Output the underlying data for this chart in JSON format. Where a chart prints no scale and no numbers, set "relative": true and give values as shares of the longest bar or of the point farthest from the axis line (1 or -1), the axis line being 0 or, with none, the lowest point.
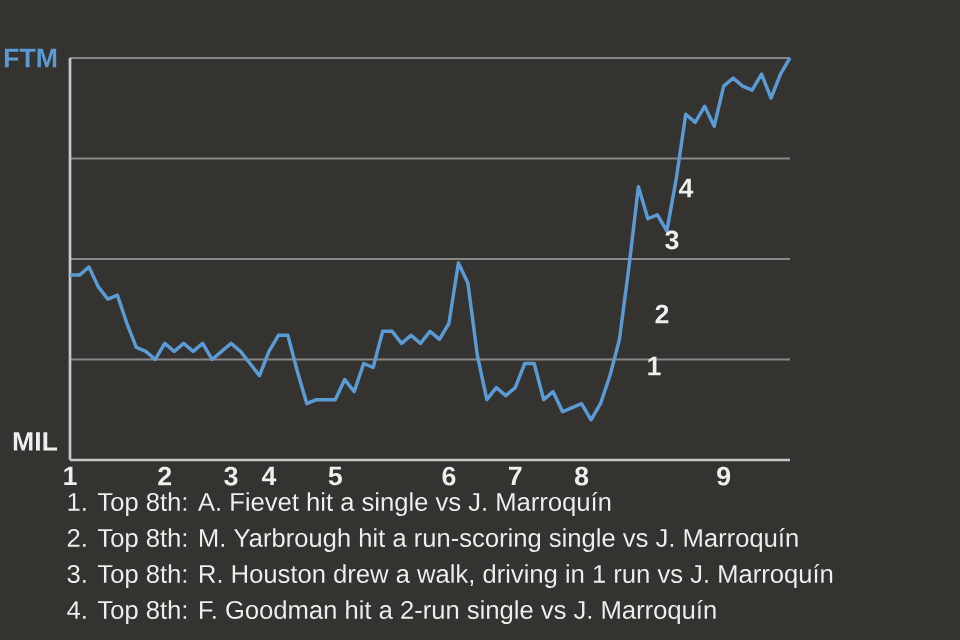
{
  "chart_data": {
    "type": "line",
    "relative": true,
    "grid": "y",
    "categories": [
      "1",
      null,
      null,
      null,
      null,
      null,
      null,
      null,
      null,
      null,
      "2",
      null,
      null,
      null,
      null,
      null,
      null,
      "3",
      null,
      null,
      null,
      "4",
      null,
      null,
      null,
      null,
      null,
      null,
      "5",
      null,
      null,
      null,
      null,
      null,
      null,
      null,
      null,
      null,
      null,
      null,
      "6",
      null,
      null,
      null,
      null,
      null,
      null,
      "7",
      null,
      null,
      null,
      null,
      null,
      null,
      "8",
      null,
      null,
      null,
      null,
      null,
      null,
      null,
      null,
      null,
      null,
      null,
      null,
      null,
      null,
      "9",
      null,
      null,
      null,
      null,
      null,
      null,
      null
    ],
    "series": [
      {
        "color": "#5b9bd5",
        "values": [
          0.46,
          0.46,
          0.48,
          0.43,
          0.4,
          0.41,
          0.34,
          0.28,
          0.27,
          0.25,
          0.29,
          0.27,
          0.29,
          0.27,
          0.29,
          0.25,
          0.27,
          0.29,
          0.27,
          0.24,
          0.21,
          0.27,
          0.31,
          0.31,
          0.22,
          0.14,
          0.15,
          0.15,
          0.15,
          0.2,
          0.17,
          0.24,
          0.23,
          0.32,
          0.32,
          0.29,
          0.31,
          0.29,
          0.32,
          0.3,
          0.34,
          0.49,
          0.44,
          0.26,
          0.15,
          0.18,
          0.16,
          0.18,
          0.24,
          0.24,
          0.15,
          0.17,
          0.12,
          0.13,
          0.14,
          0.1,
          0.14,
          0.21,
          0.3,
          0.48,
          0.68,
          0.6,
          0.61,
          0.57,
          0.7,
          0.86,
          0.84,
          0.88,
          0.83,
          0.93,
          0.95,
          0.93,
          0.92,
          0.96,
          0.9,
          0.96,
          1.0
        ],
        "line_style": "solid"
      }
    ],
    "annotations": [
      "FTM",
      "MIL",
      "1",
      "2",
      "3",
      "4",
      "1. Top 8th: A. Fievet hit a single vs J. Marroquín",
      "2. Top 8th: M. Yarbrough hit a run-scoring single vs J. Marroquín",
      "3. Top 8th: R. Houston drew a walk, driving in 1 run vs J. Marroquín",
      "4. Top 8th: F. Goodman hit a 2-run single vs J. Marroquín"
    ]
  }
}
